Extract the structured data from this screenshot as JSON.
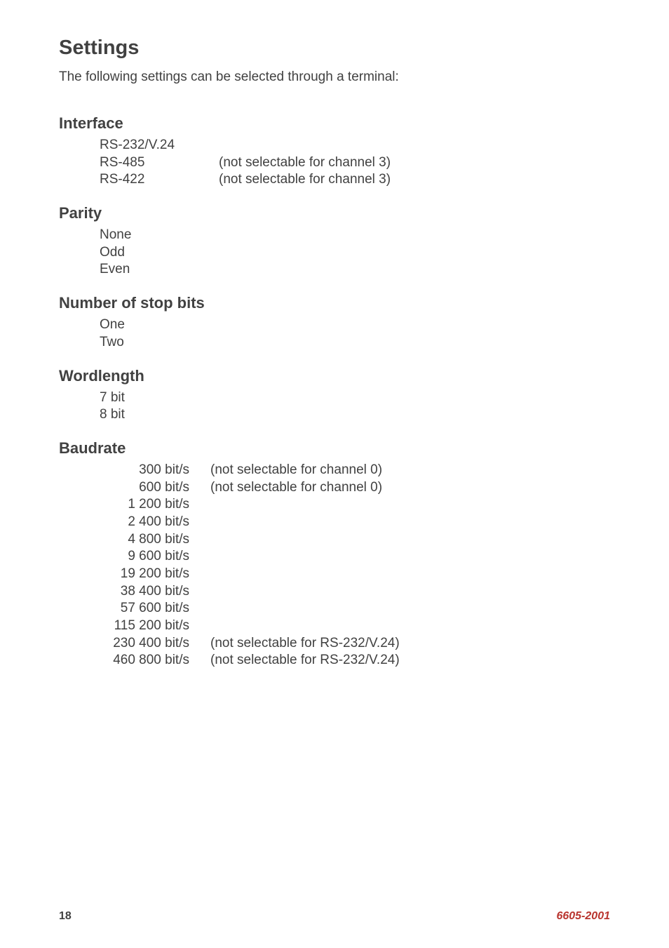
{
  "colors": {
    "text": "#414141",
    "accent": "#b9352f",
    "background": "#ffffff"
  },
  "typography": {
    "title_size_pt": 22,
    "section_size_pt": 16,
    "body_size_pt": 14,
    "footer_size_pt": 12
  },
  "title": "Settings",
  "lead": "The following settings can be selected through a terminal:",
  "sections": {
    "interface": {
      "heading": "Interface",
      "rows": [
        {
          "label": "RS-232/V.24",
          "note": ""
        },
        {
          "label": "RS-485",
          "note": "(not selectable for channel 3)"
        },
        {
          "label": "RS-422",
          "note": "(not selectable for channel 3)"
        }
      ]
    },
    "parity": {
      "heading": "Parity",
      "rows": [
        {
          "label": "None"
        },
        {
          "label": "Odd"
        },
        {
          "label": "Even"
        }
      ]
    },
    "stopbits": {
      "heading": "Number of stop bits",
      "rows": [
        {
          "label": "One"
        },
        {
          "label": "Two"
        }
      ]
    },
    "wordlength": {
      "heading": "Wordlength",
      "rows": [
        {
          "label": "7 bit"
        },
        {
          "label": "8 bit"
        }
      ]
    },
    "baudrate": {
      "heading": "Baudrate",
      "rows": [
        {
          "label": "300 bit/s",
          "note": "(not selectable for channel 0)"
        },
        {
          "label": "600 bit/s",
          "note": "(not selectable for channel 0)"
        },
        {
          "label": "1 200 bit/s",
          "note": ""
        },
        {
          "label": "2 400 bit/s",
          "note": ""
        },
        {
          "label": "4 800 bit/s",
          "note": ""
        },
        {
          "label": "9 600 bit/s",
          "note": ""
        },
        {
          "label": "19 200 bit/s",
          "note": ""
        },
        {
          "label": "38 400 bit/s",
          "note": ""
        },
        {
          "label": "57 600 bit/s",
          "note": ""
        },
        {
          "label": "115 200 bit/s",
          "note": ""
        },
        {
          "label": "230 400 bit/s",
          "note": "(not selectable for RS-232/V.24)"
        },
        {
          "label": "460 800 bit/s",
          "note": "(not selectable for RS-232/V.24)"
        }
      ]
    }
  },
  "footer": {
    "page": "18",
    "docid": "6605-2001"
  }
}
